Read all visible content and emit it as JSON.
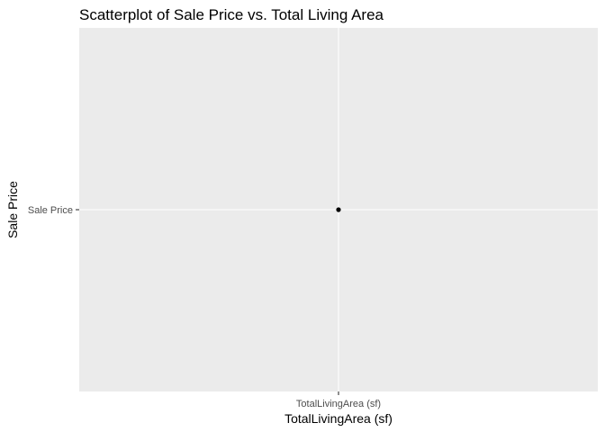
{
  "chart_data": {
    "type": "scatter",
    "title": "Scatterplot of Sale Price vs. Total Living Area",
    "xlabel": "TotalLivingArea (sf)",
    "ylabel": "Sale Price",
    "x_categories": [
      "TotalLivingArea (sf)"
    ],
    "y_categories": [
      "Sale Price"
    ],
    "points": [
      {
        "x": "TotalLivingArea (sf)",
        "y": "Sale Price"
      }
    ],
    "grid": true,
    "legend": "none"
  },
  "colors": {
    "panel_background": "#ebebeb",
    "grid_line": "#ffffff",
    "point": "#000000",
    "tick_label": "#4d4d4d",
    "tick_mark": "#333333",
    "text": "#000000"
  }
}
